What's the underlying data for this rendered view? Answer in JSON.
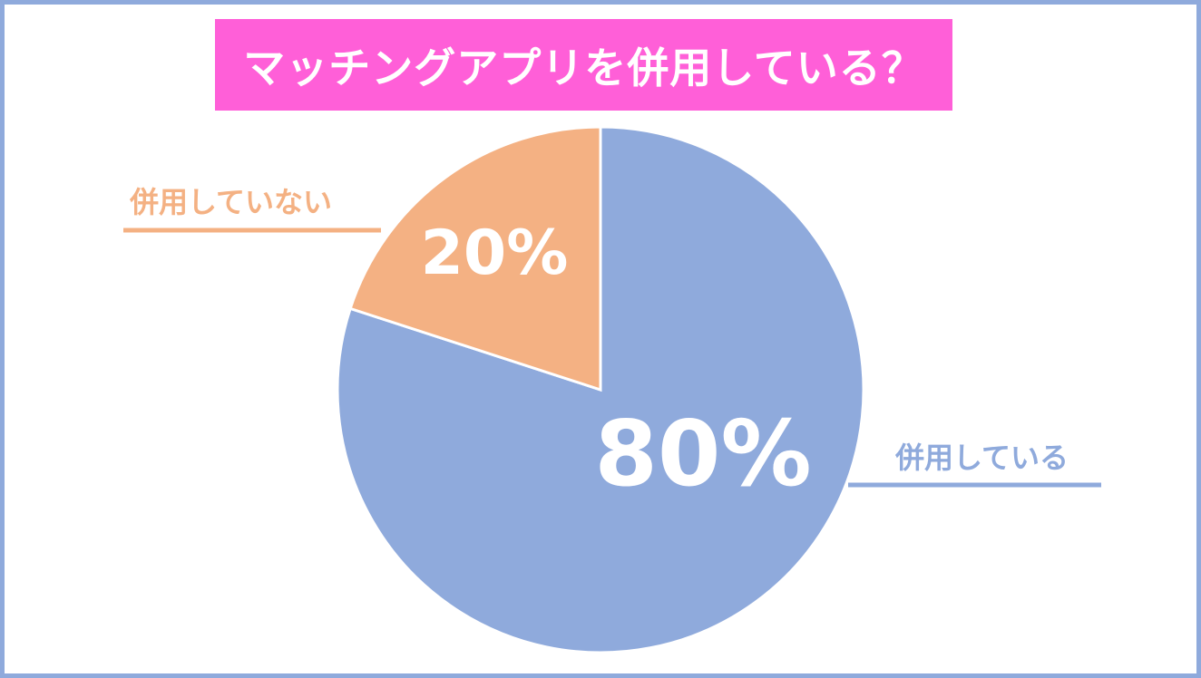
{
  "chart_data": {
    "type": "pie",
    "title": "マッチングアプリを併用している？",
    "categories": [
      "併用している",
      "併用していない"
    ],
    "values": [
      80,
      20
    ],
    "value_labels": [
      "80%",
      "20%"
    ],
    "colors": [
      "#8faadc",
      "#f4b183"
    ],
    "start_angle": "12 o'clock",
    "direction": "clockwise",
    "legend": "leader-lines"
  },
  "colors": {
    "frame": "#8faadc",
    "title_bg": "#ff5fd8",
    "title_text": "#ffffff"
  }
}
